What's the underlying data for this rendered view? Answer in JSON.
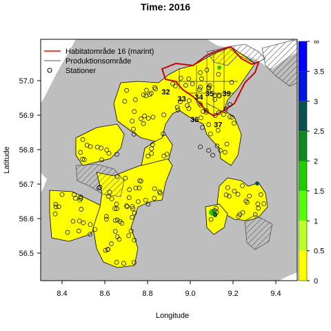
{
  "chart_data": {
    "type": "map",
    "title": "Time: 2016",
    "xlabel": "Longitude",
    "ylabel": "Latitude",
    "xlim": [
      8.3,
      9.5
    ],
    "ylim": [
      56.42,
      57.12
    ],
    "x_ticks": [
      "8.4",
      "8.6",
      "8.8",
      "9.0",
      "9.2",
      "9.4"
    ],
    "x_tick_values": [
      8.4,
      8.6,
      8.8,
      9.0,
      9.2,
      9.4
    ],
    "y_ticks": [
      "56.5",
      "56.6",
      "56.7",
      "56.8",
      "56.9",
      "57.0"
    ],
    "y_tick_values": [
      56.5,
      56.6,
      56.7,
      56.8,
      56.9,
      57.0
    ],
    "legend": {
      "position": "top-left",
      "entries": [
        {
          "label": "Habitatområde 16 (marint)",
          "symbol": "line",
          "color": "#ff0000"
        },
        {
          "label": "Produktionsområde",
          "symbol": "line",
          "color": "#555555"
        },
        {
          "label": "Stationer",
          "symbol": "circle",
          "color": "#000000"
        }
      ]
    },
    "area_labels": [
      {
        "label": "32",
        "lon": 8.885,
        "lat": 56.96
      },
      {
        "label": "33",
        "lon": 8.96,
        "lat": 56.94
      },
      {
        "label": "34",
        "lon": 9.04,
        "lat": 56.945
      },
      {
        "label": "35",
        "lon": 9.09,
        "lat": 56.955
      },
      {
        "label": "39",
        "lon": 9.17,
        "lat": 56.955
      },
      {
        "label": "36",
        "lon": 9.02,
        "lat": 56.88
      },
      {
        "label": "37",
        "lon": 9.13,
        "lat": 56.865
      }
    ],
    "colorbar": {
      "ticks": [
        "0",
        "0.5",
        "1",
        "1.5",
        "2",
        "2.5",
        "3",
        "3.5",
        "∞"
      ],
      "tick_values": [
        0,
        0.5,
        1,
        1.5,
        2,
        2.5,
        3,
        3.5,
        4
      ],
      "colors": [
        "#ffff00",
        "#b8ff2a",
        "#55ff00",
        "#22cc00",
        "#0f8a20",
        "#0a5050",
        "#0018dd",
        "#0000ff"
      ]
    },
    "colors": {
      "land": "#bebebe",
      "water": "#ffff00",
      "habitat": "#ff0000",
      "production": "#555555"
    }
  }
}
